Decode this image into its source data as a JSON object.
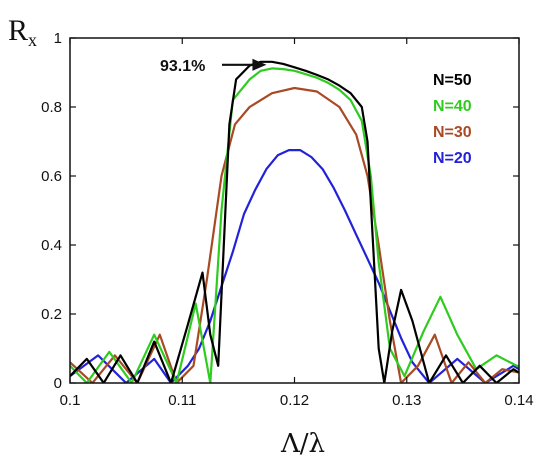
{
  "chart_data": {
    "type": "line",
    "ylabel": "R",
    "ylabel_sub": "x",
    "xlabel": "Λ/λ",
    "xlim": [
      0.1,
      0.14
    ],
    "ylim": [
      0,
      1
    ],
    "xticks": [
      "0.1",
      "0.11",
      "0.12",
      "0.13",
      "0.14"
    ],
    "yticks": [
      "0",
      "0.2",
      "0.4",
      "0.6",
      "0.8",
      "1"
    ],
    "legend_position": "top-right",
    "annotation": {
      "text": "93.1%",
      "x": 0.1175,
      "y": 0.931
    },
    "series": [
      {
        "name": "N=50",
        "color": "#000000",
        "x": [
          0.1,
          0.1015,
          0.103,
          0.1045,
          0.106,
          0.1075,
          0.109,
          0.1105,
          0.1118,
          0.1125,
          0.1132,
          0.1137,
          0.1142,
          0.1148,
          0.116,
          0.117,
          0.118,
          0.119,
          0.12,
          0.121,
          0.122,
          0.123,
          0.124,
          0.125,
          0.126,
          0.1265,
          0.127,
          0.1275,
          0.128,
          0.1287,
          0.1295,
          0.1305,
          0.132,
          0.1335,
          0.135,
          0.1365,
          0.138,
          0.1395,
          0.14
        ],
        "y": [
          0.02,
          0.07,
          0.0,
          0.08,
          0.0,
          0.12,
          0.0,
          0.17,
          0.32,
          0.14,
          0.05,
          0.4,
          0.75,
          0.88,
          0.92,
          0.931,
          0.931,
          0.925,
          0.915,
          0.905,
          0.893,
          0.88,
          0.862,
          0.84,
          0.8,
          0.7,
          0.4,
          0.1,
          0.0,
          0.15,
          0.27,
          0.18,
          0.0,
          0.08,
          0.0,
          0.05,
          0.0,
          0.04,
          0.03
        ]
      },
      {
        "name": "N=40",
        "color": "#2fcc1f",
        "x": [
          0.1,
          0.1015,
          0.1035,
          0.1055,
          0.1075,
          0.1095,
          0.1112,
          0.1125,
          0.1135,
          0.1145,
          0.116,
          0.117,
          0.118,
          0.119,
          0.12,
          0.121,
          0.122,
          0.123,
          0.124,
          0.125,
          0.126,
          0.1268,
          0.1275,
          0.1285,
          0.1298,
          0.1315,
          0.133,
          0.1345,
          0.1362,
          0.138,
          0.1398,
          0.14
        ],
        "y": [
          0.05,
          0.0,
          0.09,
          0.0,
          0.14,
          0.0,
          0.23,
          0.0,
          0.5,
          0.82,
          0.88,
          0.905,
          0.912,
          0.91,
          0.905,
          0.895,
          0.885,
          0.87,
          0.85,
          0.82,
          0.76,
          0.6,
          0.35,
          0.1,
          0.02,
          0.15,
          0.25,
          0.14,
          0.04,
          0.08,
          0.05,
          0.05
        ]
      },
      {
        "name": "N=30",
        "color": "#a84a24",
        "x": [
          0.1,
          0.102,
          0.104,
          0.106,
          0.108,
          0.1095,
          0.111,
          0.1122,
          0.1135,
          0.1147,
          0.116,
          0.118,
          0.12,
          0.122,
          0.124,
          0.1255,
          0.1265,
          0.1275,
          0.1285,
          0.1295,
          0.131,
          0.1325,
          0.134,
          0.1355,
          0.137,
          0.1385,
          0.14
        ],
        "y": [
          0.06,
          0.0,
          0.08,
          0.0,
          0.14,
          0.0,
          0.05,
          0.3,
          0.6,
          0.75,
          0.8,
          0.84,
          0.855,
          0.845,
          0.8,
          0.72,
          0.6,
          0.4,
          0.18,
          0.0,
          0.05,
          0.14,
          0.0,
          0.06,
          0.0,
          0.04,
          0.03
        ]
      },
      {
        "name": "N=20",
        "color": "#2222d8",
        "x": [
          0.1,
          0.1025,
          0.105,
          0.1075,
          0.109,
          0.1105,
          0.1115,
          0.1125,
          0.1135,
          0.1145,
          0.1155,
          0.1165,
          0.1175,
          0.1185,
          0.1195,
          0.1205,
          0.1215,
          0.1225,
          0.1235,
          0.1245,
          0.1255,
          0.1265,
          0.1275,
          0.1285,
          0.1295,
          0.1305,
          0.132,
          0.1345,
          0.137,
          0.1395,
          0.14
        ],
        "y": [
          0.02,
          0.08,
          0.0,
          0.07,
          0.0,
          0.05,
          0.1,
          0.18,
          0.28,
          0.38,
          0.49,
          0.56,
          0.62,
          0.66,
          0.675,
          0.675,
          0.655,
          0.62,
          0.565,
          0.5,
          0.43,
          0.36,
          0.29,
          0.21,
          0.13,
          0.06,
          0.0,
          0.07,
          0.0,
          0.05,
          0.04
        ]
      }
    ]
  }
}
